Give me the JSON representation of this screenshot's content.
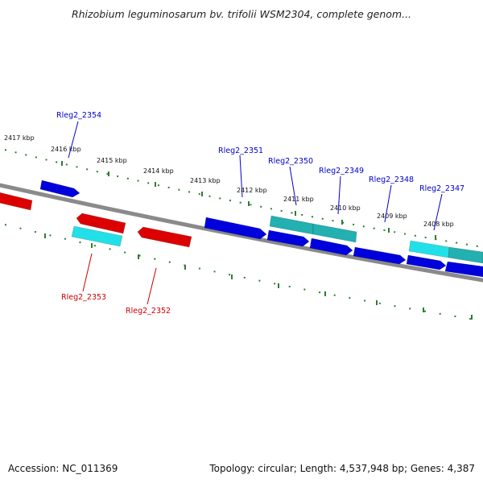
{
  "title": "Rhizobium leguminosarum bv. trifolii WSM2304, complete genom...",
  "footer": {
    "accession": "Accession: NC_011369",
    "stats": "Topology: circular; Length: 4,537,948 bp; Genes: 4,387"
  },
  "colors": {
    "backbone": "#8a8a8a",
    "tick": "#2e7d32",
    "forward_label": "#0000cc",
    "reverse_label": "#cc0000",
    "forward_gene": "#0000dd",
    "reverse_gene": "#dd0000",
    "rna_gene_light": "#22e0e8",
    "rna_gene_dark": "#22b0b0"
  },
  "kbp_labels": [
    "2417 kbp",
    "2416 kbp",
    "2415 kbp",
    "2414 kbp",
    "2413 kbp",
    "2412 kbp",
    "2411 kbp",
    "2410 kbp",
    "2409 kbp",
    "2408 kbp"
  ],
  "forward_labels": [
    "Rleg2_2354",
    "Rleg2_2351",
    "Rleg2_2350",
    "Rleg2_2349",
    "Rleg2_2348",
    "Rleg2_2347"
  ],
  "reverse_labels": [
    "Rleg2_2353",
    "Rleg2_2352"
  ]
}
